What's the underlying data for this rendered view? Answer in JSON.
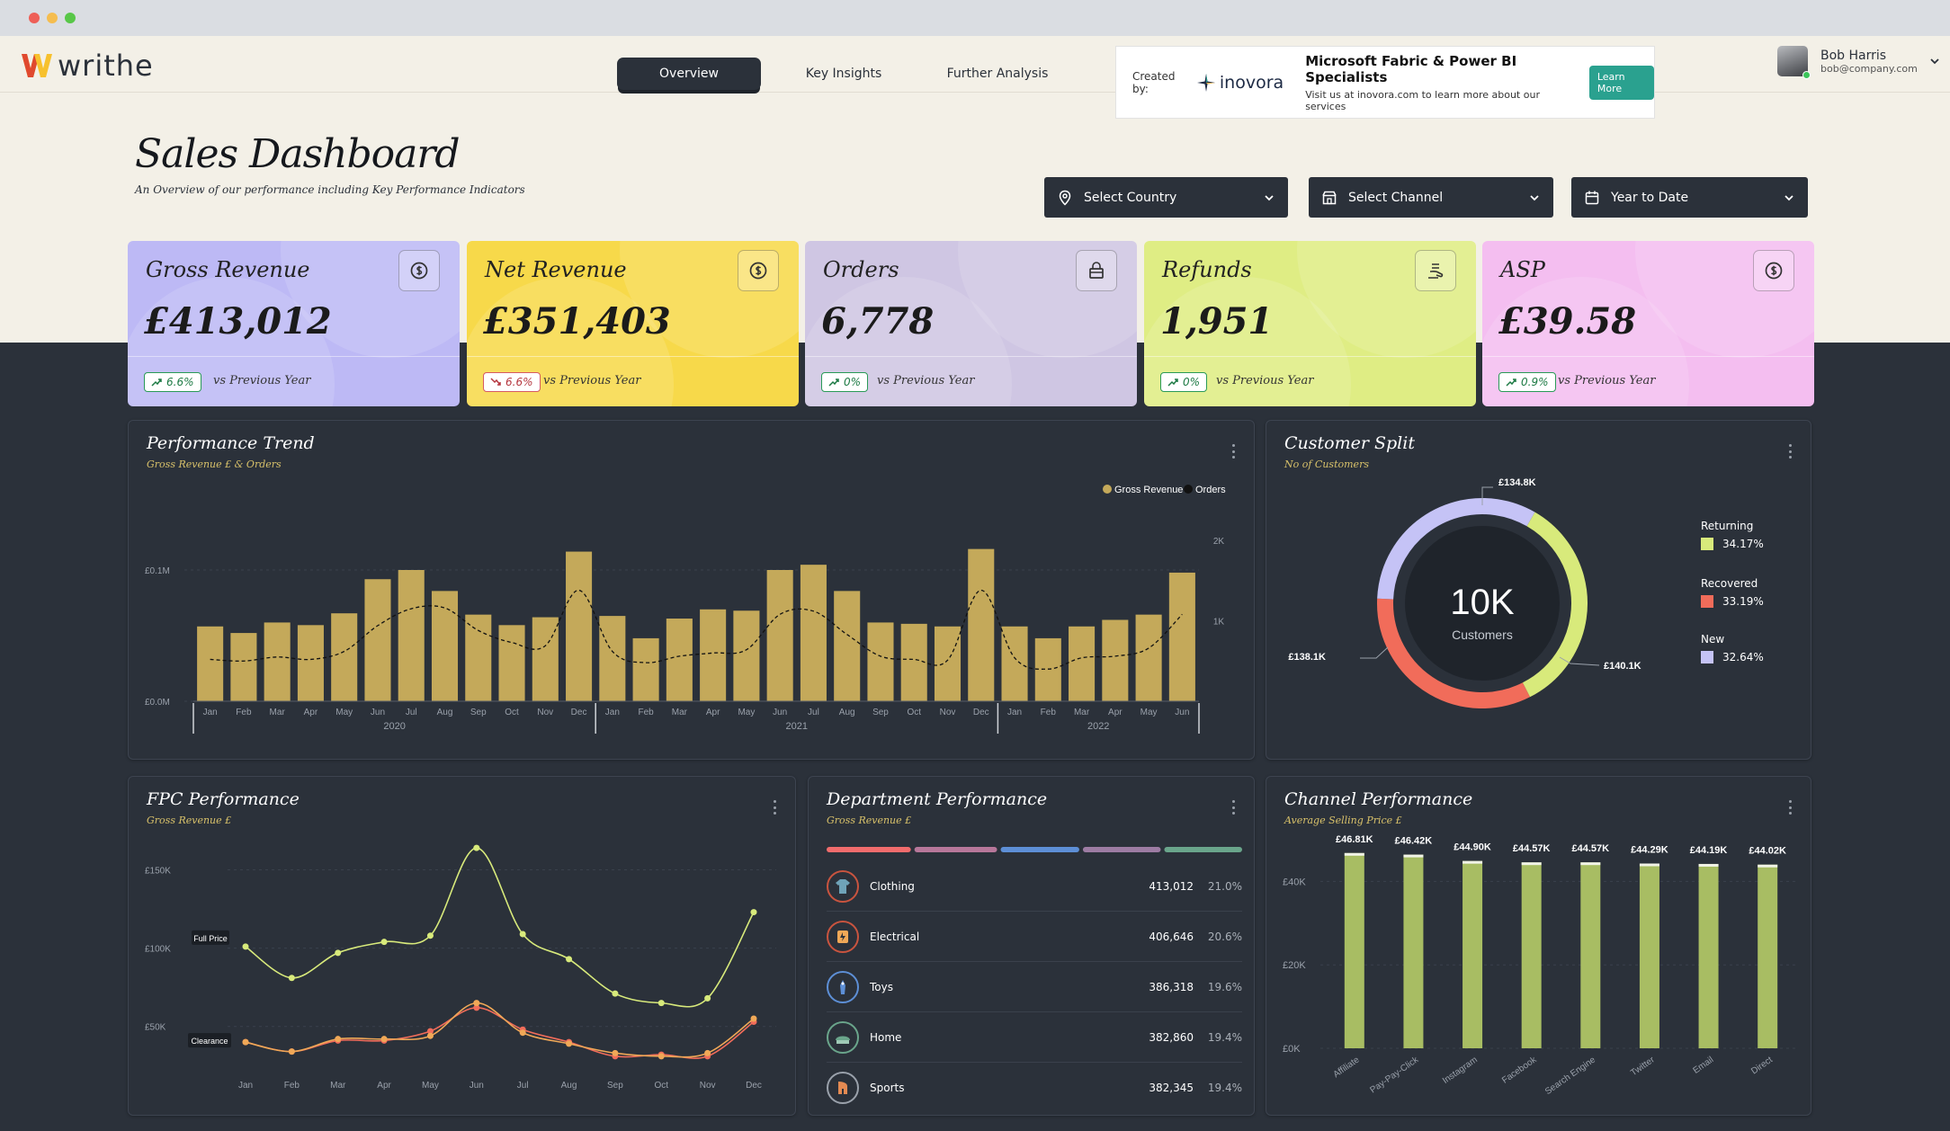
{
  "app": {
    "logo_text": "writhe"
  },
  "nav": {
    "tabs": [
      {
        "label": "Overview"
      },
      {
        "label": "Key Insights"
      },
      {
        "label": "Further Analysis"
      }
    ]
  },
  "banner": {
    "created_by": "Created by:",
    "brand": "inovora",
    "headline": "Microsoft Fabric & Power BI Specialists",
    "sub": "Visit us at inovora.com to learn more about our services",
    "cta": "Learn More"
  },
  "user": {
    "name": "Bob Harris",
    "email": "bob@company.com"
  },
  "page": {
    "title": "Sales Dashboard",
    "subtitle": "An Overview of our performance including Key Performance Indicators"
  },
  "filters": [
    {
      "label": "Select Country",
      "icon": "map-pin-icon"
    },
    {
      "label": "Select Channel",
      "icon": "store-icon"
    },
    {
      "label": "Year to Date",
      "icon": "calendar-icon"
    }
  ],
  "kpis": [
    {
      "title": "Gross Revenue",
      "value": "£413,012",
      "change": "6.6%",
      "trend": "up",
      "vs": "vs Previous Year",
      "color": "#bdb9f5",
      "icon": "coin-icon"
    },
    {
      "title": "Net Revenue",
      "value": "£351,403",
      "change": "6.6%",
      "trend": "down",
      "vs": "vs Previous Year",
      "color": "#f7d94a",
      "icon": "coin-icon"
    },
    {
      "title": "Orders",
      "value": "6,778",
      "change": "0%",
      "trend": "up",
      "vs": "vs Previous Year",
      "color": "#cfc6e3",
      "icon": "package-icon"
    },
    {
      "title": "Refunds",
      "value": "1,951",
      "change": "0%",
      "trend": "up",
      "vs": "vs Previous Year",
      "color": "#dfed84",
      "icon": "refund-icon"
    },
    {
      "title": "ASP",
      "value": "£39.58",
      "change": "0.9%",
      "trend": "up",
      "vs": "vs Previous Year",
      "color": "#f4bef0",
      "icon": "coin-icon"
    }
  ],
  "panels": {
    "trend": {
      "title": "Performance Trend",
      "subtitle": "Gross Revenue £ & Orders"
    },
    "customer": {
      "title": "Customer Split",
      "subtitle": "No of Customers",
      "center_value": "10K",
      "center_label": "Customers"
    },
    "fpc": {
      "title": "FPC Performance",
      "subtitle": "Gross Revenue £",
      "label_full": "Full Price",
      "label_clear": "Clearance"
    },
    "dept": {
      "title": "Department Performance",
      "subtitle": "Gross Revenue £"
    },
    "channel": {
      "title": "Channel Performance",
      "subtitle": "Average Selling Price £"
    }
  },
  "chart_data": [
    {
      "type": "bar",
      "title": "Performance Trend",
      "categories": [
        "Jan",
        "Feb",
        "Mar",
        "Apr",
        "May",
        "Jun",
        "Jul",
        "Aug",
        "Sep",
        "Oct",
        "Nov",
        "Dec",
        "Jan",
        "Feb",
        "Mar",
        "Apr",
        "May",
        "Jun",
        "Jul",
        "Aug",
        "Sep",
        "Oct",
        "Nov",
        "Dec",
        "Jan",
        "Feb",
        "Mar",
        "Apr",
        "May",
        "Jun"
      ],
      "years": [
        {
          "label": "2020",
          "from": 0,
          "to": 11
        },
        {
          "label": "2021",
          "from": 12,
          "to": 23
        },
        {
          "label": "2022",
          "from": 24,
          "to": 29
        }
      ],
      "legend": [
        {
          "name": "Gross Revenue",
          "color": "#c4a95a"
        },
        {
          "name": "Orders",
          "color": "#111111"
        }
      ],
      "series": [
        {
          "name": "Gross Revenue",
          "axis": "left",
          "values": [
            0.057,
            0.052,
            0.06,
            0.058,
            0.067,
            0.093,
            0.1,
            0.084,
            0.066,
            0.058,
            0.064,
            0.114,
            0.065,
            0.048,
            0.063,
            0.07,
            0.069,
            0.1,
            0.104,
            0.084,
            0.06,
            0.059,
            0.057,
            0.116,
            0.057,
            0.048,
            0.057,
            0.062,
            0.066,
            0.098
          ]
        },
        {
          "name": "Orders",
          "axis": "right",
          "values": [
            520,
            500,
            550,
            520,
            620,
            940,
            1150,
            1160,
            880,
            730,
            690,
            1380,
            620,
            480,
            560,
            600,
            640,
            1080,
            1120,
            830,
            560,
            520,
            510,
            1380,
            540,
            400,
            540,
            560,
            660,
            1080
          ]
        }
      ],
      "yticks_left": [
        {
          "v": 0,
          "label": "£0.0M"
        },
        {
          "v": 0.1,
          "label": "£0.1M"
        }
      ],
      "yticks_right": [
        {
          "v": 1000,
          "label": "1K"
        },
        {
          "v": 2000,
          "label": "2K"
        }
      ],
      "ylim": [
        0,
        0.15
      ],
      "ylim_right": [
        0,
        2000
      ]
    },
    {
      "type": "pie",
      "title": "Customer Split",
      "slices": [
        {
          "name": "Returning",
          "pct": 34.17,
          "pct_label": "34.17%",
          "value_label": "£140.1K",
          "color": "#d8ea7b"
        },
        {
          "name": "Recovered",
          "pct": 33.19,
          "pct_label": "33.19%",
          "value_label": "£138.1K",
          "color": "#f16c5a"
        },
        {
          "name": "New",
          "pct": 32.64,
          "pct_label": "32.64%",
          "value_label": "£134.8K",
          "color": "#c5c3f6"
        }
      ]
    },
    {
      "type": "line",
      "title": "FPC Performance",
      "categories": [
        "Jan",
        "Feb",
        "Mar",
        "Apr",
        "May",
        "Jun",
        "Jul",
        "Aug",
        "Sep",
        "Oct",
        "Nov",
        "Dec"
      ],
      "series": [
        {
          "name": "Full Price",
          "color": "#d8ea7b",
          "values": [
            101000,
            81000,
            97000,
            104000,
            108000,
            164000,
            109000,
            93000,
            71000,
            65000,
            68000,
            123000
          ]
        },
        {
          "name": "Clearance",
          "color": "#f0a857",
          "values": [
            40000,
            34000,
            42000,
            42000,
            44000,
            65000,
            46000,
            39000,
            33000,
            31000,
            33000,
            55000
          ]
        },
        {
          "name": "Clearance-alt",
          "color": "#f16c5a",
          "values": [
            40000,
            34000,
            41000,
            41000,
            47000,
            62000,
            48000,
            40000,
            31000,
            32000,
            31000,
            53000
          ]
        }
      ],
      "yticks": [
        {
          "v": 50000,
          "label": "£50K"
        },
        {
          "v": 100000,
          "label": "£100K"
        },
        {
          "v": 150000,
          "label": "£150K"
        }
      ],
      "ylim": [
        20000,
        175000
      ]
    },
    {
      "type": "table",
      "title": "Department Performance",
      "rows": [
        {
          "name": "Clothing",
          "value": "413,012",
          "pct": "21.0%",
          "icon": "clothing-icon",
          "bar_color": "#f16c6c"
        },
        {
          "name": "Electrical",
          "value": "406,646",
          "pct": "20.6%",
          "icon": "electrical-icon",
          "bar_color": "#b7779a"
        },
        {
          "name": "Toys",
          "value": "386,318",
          "pct": "19.6%",
          "icon": "toys-icon",
          "bar_color": "#5d8fd6"
        },
        {
          "name": "Home",
          "value": "382,860",
          "pct": "19.4%",
          "icon": "home-icon",
          "bar_color": "#9d7ca3"
        },
        {
          "name": "Sports",
          "value": "382,345",
          "pct": "19.4%",
          "icon": "sports-icon",
          "bar_color": "#6aa58b"
        }
      ]
    },
    {
      "type": "bar",
      "title": "Channel Performance",
      "categories": [
        "Affiliate",
        "Pay-Pay-Click",
        "Instagram",
        "Facebook",
        "Search Engine",
        "Twitter",
        "Email",
        "Direct"
      ],
      "values": [
        46.81,
        46.42,
        44.9,
        44.57,
        44.57,
        44.29,
        44.19,
        44.02
      ],
      "value_labels": [
        "£46.81K",
        "£46.42K",
        "£44.90K",
        "£44.57K",
        "£44.57K",
        "£44.29K",
        "£44.19K",
        "£44.02K"
      ],
      "yticks": [
        {
          "v": 0,
          "label": "£0K"
        },
        {
          "v": 20,
          "label": "£20K"
        },
        {
          "v": 40,
          "label": "£40K"
        }
      ],
      "ylim": [
        0,
        50
      ],
      "color": "#a8bd63"
    }
  ]
}
